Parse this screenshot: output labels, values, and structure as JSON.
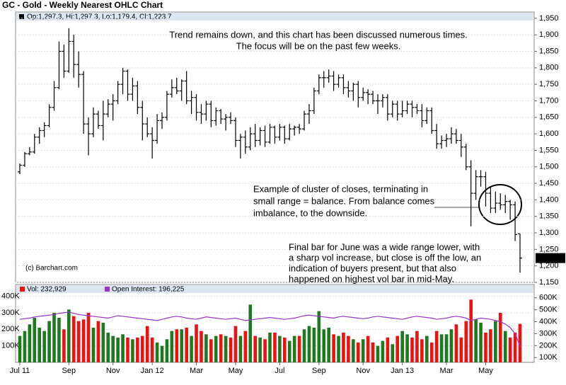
{
  "chart_data": [
    {
      "type": "ohlc",
      "title": "GC - Gold - Weekly Nearest OHLC Chart",
      "legend": "Op:1,297.3, Hi:1,297.3, Lo:1,179.4, Cl:1,223.7",
      "last_price_label": "1,223.7",
      "source": "(c) Barchart.com",
      "color": "#000000",
      "grid": true,
      "ylim": [
        1150,
        1969
      ],
      "yticks": [
        {
          "value": 1150,
          "label": "1,150"
        },
        {
          "value": 1200,
          "label": "1,200"
        },
        {
          "value": 1250,
          "label": "1,250"
        },
        {
          "value": 1300,
          "label": "1,300"
        },
        {
          "value": 1350,
          "label": "1,350"
        },
        {
          "value": 1400,
          "label": "1,400"
        },
        {
          "value": 1450,
          "label": "1,450"
        },
        {
          "value": 1500,
          "label": "1,500"
        },
        {
          "value": 1550,
          "label": "1,550"
        },
        {
          "value": 1600,
          "label": "1,600"
        },
        {
          "value": 1650,
          "label": "1,650"
        },
        {
          "value": 1700,
          "label": "1,700"
        },
        {
          "value": 1750,
          "label": "1,750"
        },
        {
          "value": 1800,
          "label": "1,800"
        },
        {
          "value": 1850,
          "label": "1,850"
        },
        {
          "value": 1900,
          "label": "1,900"
        },
        {
          "value": 1950,
          "label": "1,950"
        }
      ],
      "open": [
        1485,
        1505,
        1540,
        1545,
        1590,
        1610,
        1625,
        1680,
        1740,
        1850,
        1790,
        1880,
        1810,
        1780,
        1630,
        1600,
        1660,
        1625,
        1660,
        1690,
        1700,
        1750,
        1790,
        1720,
        1745,
        1680,
        1630,
        1600,
        1580,
        1640,
        1650,
        1720,
        1740,
        1730,
        1760,
        1700,
        1710,
        1665,
        1660,
        1690,
        1640,
        1670,
        1645,
        1650,
        1640,
        1580,
        1590,
        1560,
        1600,
        1580,
        1610,
        1575,
        1620,
        1590,
        1620,
        1585,
        1615,
        1620,
        1615,
        1660,
        1670,
        1730,
        1770,
        1770,
        1775,
        1750,
        1770,
        1740,
        1730,
        1750,
        1710,
        1725,
        1720,
        1700,
        1700,
        1710,
        1660,
        1690,
        1660,
        1670,
        1690,
        1680,
        1670,
        1640,
        1670,
        1610,
        1570,
        1580,
        1585,
        1600,
        1580,
        1560,
        1500,
        1420,
        1470,
        1470,
        1420,
        1375,
        1390,
        1385,
        1395,
        1385,
        1297.3
      ],
      "high": [
        1510,
        1545,
        1560,
        1600,
        1620,
        1635,
        1690,
        1760,
        1880,
        1870,
        1920,
        1900,
        1850,
        1790,
        1650,
        1680,
        1670,
        1700,
        1705,
        1720,
        1760,
        1800,
        1795,
        1770,
        1760,
        1700,
        1650,
        1620,
        1660,
        1665,
        1730,
        1765,
        1770,
        1765,
        1790,
        1730,
        1720,
        1690,
        1700,
        1700,
        1680,
        1675,
        1660,
        1665,
        1650,
        1600,
        1610,
        1620,
        1630,
        1620,
        1625,
        1630,
        1625,
        1630,
        1625,
        1630,
        1625,
        1630,
        1670,
        1690,
        1740,
        1780,
        1790,
        1795,
        1790,
        1780,
        1780,
        1760,
        1755,
        1760,
        1740,
        1735,
        1730,
        1720,
        1720,
        1720,
        1700,
        1700,
        1700,
        1700,
        1700,
        1690,
        1690,
        1680,
        1680,
        1630,
        1595,
        1600,
        1620,
        1615,
        1600,
        1570,
        1520,
        1490,
        1490,
        1485,
        1440,
        1425,
        1420,
        1415,
        1400,
        1395,
        1297.3
      ],
      "low": [
        1478,
        1500,
        1535,
        1540,
        1570,
        1590,
        1620,
        1670,
        1735,
        1770,
        1785,
        1770,
        1740,
        1600,
        1535,
        1590,
        1615,
        1580,
        1650,
        1640,
        1690,
        1720,
        1700,
        1700,
        1660,
        1580,
        1590,
        1525,
        1570,
        1615,
        1640,
        1710,
        1720,
        1700,
        1690,
        1660,
        1640,
        1630,
        1640,
        1620,
        1625,
        1630,
        1610,
        1630,
        1560,
        1525,
        1540,
        1550,
        1560,
        1565,
        1560,
        1570,
        1570,
        1580,
        1570,
        1580,
        1595,
        1600,
        1610,
        1630,
        1660,
        1720,
        1740,
        1755,
        1730,
        1740,
        1720,
        1710,
        1700,
        1680,
        1700,
        1690,
        1690,
        1660,
        1680,
        1640,
        1650,
        1640,
        1650,
        1660,
        1650,
        1660,
        1620,
        1630,
        1600,
        1555,
        1555,
        1560,
        1570,
        1570,
        1530,
        1490,
        1320,
        1400,
        1440,
        1380,
        1360,
        1360,
        1370,
        1360,
        1340,
        1275,
        1179.4
      ],
      "close": [
        1505,
        1540,
        1545,
        1590,
        1610,
        1625,
        1680,
        1740,
        1850,
        1790,
        1880,
        1810,
        1780,
        1630,
        1600,
        1660,
        1625,
        1660,
        1690,
        1700,
        1750,
        1790,
        1720,
        1745,
        1680,
        1630,
        1600,
        1580,
        1640,
        1650,
        1720,
        1740,
        1730,
        1760,
        1700,
        1710,
        1665,
        1660,
        1690,
        1640,
        1670,
        1645,
        1650,
        1640,
        1580,
        1590,
        1560,
        1600,
        1580,
        1610,
        1575,
        1620,
        1590,
        1620,
        1585,
        1615,
        1620,
        1615,
        1660,
        1670,
        1730,
        1770,
        1770,
        1775,
        1750,
        1770,
        1740,
        1730,
        1750,
        1710,
        1725,
        1720,
        1700,
        1700,
        1710,
        1660,
        1690,
        1660,
        1670,
        1690,
        1680,
        1670,
        1640,
        1670,
        1610,
        1570,
        1580,
        1585,
        1600,
        1580,
        1560,
        1500,
        1420,
        1470,
        1470,
        1420,
        1375,
        1390,
        1385,
        1395,
        1385,
        1295,
        1223.7
      ],
      "annotations": [
        {
          "lines": [
            "Trend remains down, and this chart has been discussed numerous times.",
            "The focus will be on the past few weeks."
          ]
        },
        {
          "lines": [
            "Example of cluster of closes, terminating in",
            "small range = balance.  From balance comes",
            "imbalance, to the downside."
          ]
        },
        {
          "lines": [
            "Final bar for June was a wide range lower, with",
            "a sharp vol increase, but close is off the low, an",
            "indication of buyers present, but that also",
            "happened on highest vol bar in mid-May."
          ]
        }
      ]
    },
    {
      "type": "bar",
      "categories": [
        "Jul 11",
        null,
        null,
        null,
        null,
        null,
        null,
        null,
        null,
        null,
        "Sep",
        null,
        null,
        null,
        null,
        null,
        null,
        null,
        null,
        "Nov",
        null,
        null,
        null,
        null,
        null,
        null,
        null,
        "Jan 12",
        null,
        null,
        null,
        null,
        null,
        null,
        null,
        null,
        "Mar",
        null,
        null,
        null,
        null,
        null,
        null,
        null,
        "May",
        null,
        null,
        null,
        null,
        null,
        null,
        null,
        null,
        "Jul",
        null,
        null,
        null,
        null,
        null,
        null,
        null,
        "Sep",
        null,
        null,
        null,
        null,
        null,
        null,
        null,
        null,
        "Nov",
        null,
        null,
        null,
        null,
        null,
        null,
        null,
        "Jan 13",
        null,
        null,
        null,
        null,
        null,
        null,
        null,
        null,
        "Mar",
        null,
        null,
        null,
        null,
        null,
        null,
        null,
        "May",
        null,
        null,
        null,
        null,
        null,
        null,
        null
      ],
      "series": [
        {
          "name": "Vol: 232,929",
          "up_color": "#1f7a1f",
          "down_color": "#ee1111",
          "values": [
            160000,
            190000,
            230000,
            270000,
            210000,
            190000,
            250000,
            300000,
            270000,
            200000,
            320000,
            280000,
            250000,
            260000,
            300000,
            210000,
            250000,
            240000,
            180000,
            160000,
            150000,
            170000,
            150000,
            140000,
            150000,
            160000,
            220000,
            150000,
            120000,
            100000,
            140000,
            190000,
            200000,
            200000,
            210000,
            160000,
            230000,
            190000,
            170000,
            140000,
            160000,
            170000,
            160000,
            150000,
            220000,
            160000,
            190000,
            350000,
            160000,
            150000,
            140000,
            180000,
            180000,
            160000,
            150000,
            130000,
            160000,
            160000,
            200000,
            220000,
            210000,
            310000,
            200000,
            210000,
            170000,
            160000,
            180000,
            160000,
            140000,
            120000,
            140000,
            160000,
            120000,
            100000,
            130000,
            150000,
            110000,
            160000,
            190000,
            170000,
            150000,
            190000,
            140000,
            160000,
            120000,
            190000,
            170000,
            170000,
            200000,
            230000,
            150000,
            250000,
            380000,
            260000,
            240000,
            180000,
            200000,
            250000,
            300000,
            190000,
            150000,
            180000,
            232929
          ]
        },
        {
          "name": "Open Interest: 196,225",
          "color": "#9933cc",
          "axis": "y2",
          "values": [
            420000,
            425000,
            430000,
            440000,
            445000,
            450000,
            455000,
            460000,
            470000,
            475000,
            480000,
            470000,
            460000,
            455000,
            450000,
            445000,
            440000,
            435000,
            430000,
            440000,
            450000,
            445000,
            440000,
            435000,
            430000,
            425000,
            420000,
            415000,
            410000,
            420000,
            430000,
            440000,
            445000,
            440000,
            430000,
            425000,
            420000,
            430000,
            440000,
            435000,
            430000,
            425000,
            420000,
            425000,
            430000,
            420000,
            410000,
            415000,
            420000,
            425000,
            430000,
            435000,
            430000,
            425000,
            420000,
            425000,
            430000,
            440000,
            450000,
            455000,
            450000,
            445000,
            440000,
            435000,
            430000,
            440000,
            445000,
            440000,
            435000,
            430000,
            425000,
            430000,
            440000,
            445000,
            440000,
            435000,
            430000,
            425000,
            420000,
            430000,
            440000,
            445000,
            440000,
            435000,
            430000,
            420000,
            425000,
            430000,
            440000,
            445000,
            440000,
            430000,
            410000,
            420000,
            430000,
            425000,
            420000,
            410000,
            400000,
            380000,
            350000,
            300000,
            196225
          ]
        }
      ],
      "ylim": [
        0,
        420000
      ],
      "yticks": [
        {
          "value": 100000,
          "label": "100K"
        },
        {
          "value": 200000,
          "label": "200K"
        },
        {
          "value": 300000,
          "label": "300K"
        },
        {
          "value": 400000,
          "label": "400K"
        }
      ],
      "y2lim": [
        60000,
        640000
      ],
      "y2ticks": [
        {
          "value": 100000,
          "label": "100K"
        },
        {
          "value": 200000,
          "label": "200K"
        },
        {
          "value": 300000,
          "label": "300K"
        },
        {
          "value": 400000,
          "label": "400K"
        },
        {
          "value": 500000,
          "label": "500K"
        },
        {
          "value": 600000,
          "label": "600K"
        }
      ],
      "grid": true
    }
  ]
}
